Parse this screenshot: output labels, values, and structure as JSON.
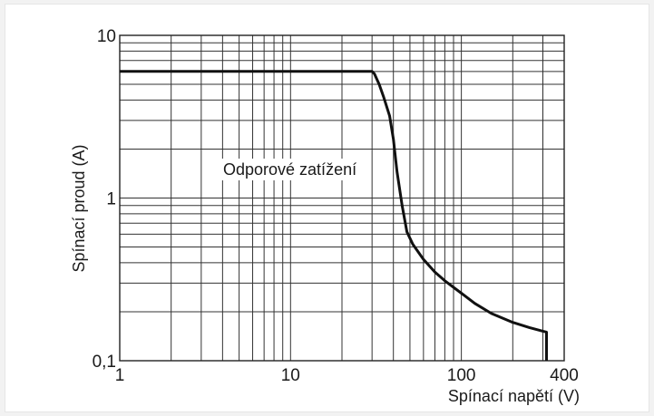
{
  "chart_data": {
    "type": "line",
    "x_scale": "log",
    "y_scale": "log",
    "xlim": [
      1,
      400
    ],
    "ylim": [
      0.1,
      10
    ],
    "xlabel": "Spínací napětí (V)",
    "ylabel": "Spínací proud (A)",
    "x_ticks": [
      {
        "value": 1,
        "label": "1"
      },
      {
        "value": 10,
        "label": "10"
      },
      {
        "value": 100,
        "label": "100"
      },
      {
        "value": 400,
        "label": "400"
      }
    ],
    "y_ticks": [
      {
        "value": 0.1,
        "label": "0,1"
      },
      {
        "value": 1,
        "label": "1"
      },
      {
        "value": 10,
        "label": "10"
      }
    ],
    "grid": true,
    "annotation": "Odporové zatížení",
    "series": [
      {
        "x": [
          1,
          30,
          31,
          33,
          35,
          38,
          40,
          42,
          45,
          48,
          52,
          60,
          70,
          80,
          100,
          120,
          150,
          200,
          250,
          300,
          315,
          315
        ],
        "y": [
          6,
          6,
          5.8,
          5.0,
          4.2,
          3.2,
          2.3,
          1.45,
          0.9,
          0.62,
          0.52,
          0.42,
          0.35,
          0.31,
          0.26,
          0.225,
          0.195,
          0.172,
          0.16,
          0.152,
          0.15,
          0.1
        ]
      }
    ],
    "line_color": "#111111",
    "grid_color": "#333333"
  }
}
